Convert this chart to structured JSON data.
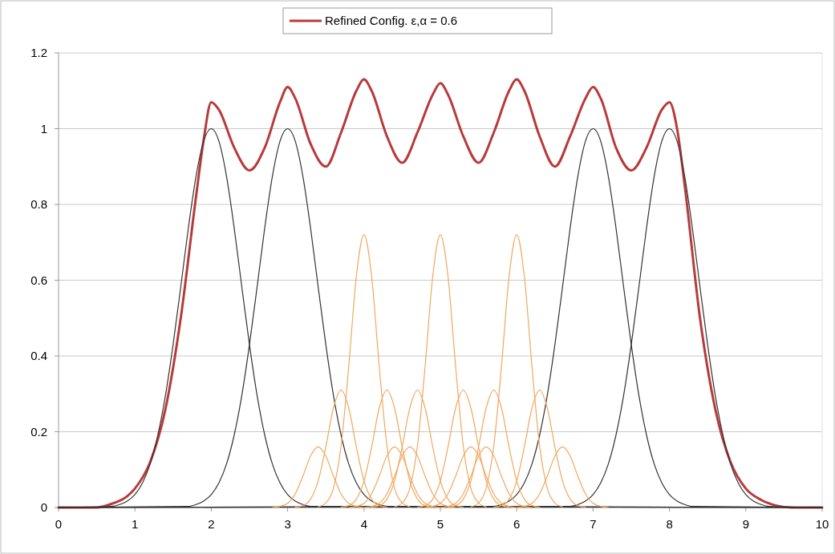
{
  "chart_data": {
    "type": "line",
    "xlim": [
      0,
      10
    ],
    "ylim": [
      0,
      1.2
    ],
    "xticks": [
      0,
      1,
      2,
      3,
      4,
      5,
      6,
      7,
      8,
      9,
      10
    ],
    "yticks": [
      0,
      0.2,
      0.4,
      0.6,
      0.8,
      1,
      1.2
    ],
    "grid": "y",
    "legend": "top",
    "marker": "none",
    "line_style": "solid",
    "series": [
      {
        "name": "Refined Config. ε,α = 0.6",
        "color": "#b83a3a",
        "x": [
          0,
          0.5,
          0.7,
          0.9,
          1,
          1.2,
          1.4,
          1.6,
          1.8,
          1.9,
          2,
          2.1,
          2.3,
          2.5,
          2.7,
          2.9,
          3,
          3.1,
          3.3,
          3.5,
          3.7,
          3.9,
          4,
          4.1,
          4.3,
          4.5,
          4.7,
          4.9,
          5,
          5.1,
          5.3,
          5.5,
          5.7,
          5.9,
          6,
          6.1,
          6.3,
          6.5,
          6.7,
          6.9,
          7,
          7.1,
          7.3,
          7.5,
          7.7,
          7.9,
          8,
          8.1,
          8.2,
          8.4,
          8.6,
          8.8,
          9,
          9.2,
          9.4,
          9.6,
          10
        ],
        "values": [
          0,
          0,
          0.01,
          0.03,
          0.05,
          0.12,
          0.26,
          0.5,
          0.82,
          0.97,
          1.07,
          1.05,
          0.95,
          0.89,
          0.95,
          1.07,
          1.11,
          1.08,
          0.96,
          0.9,
          0.99,
          1.1,
          1.13,
          1.1,
          0.98,
          0.91,
          0.99,
          1.09,
          1.12,
          1.09,
          0.98,
          0.91,
          0.99,
          1.1,
          1.13,
          1.1,
          0.98,
          0.9,
          0.98,
          1.08,
          1.11,
          1.08,
          0.95,
          0.89,
          0.95,
          1.05,
          1.07,
          1,
          0.85,
          0.5,
          0.26,
          0.12,
          0.05,
          0.02,
          0.005,
          0,
          0
        ]
      },
      {
        "color": "#333333",
        "x": [
          0,
          0.7,
          0.8,
          0.9,
          1,
          1.1,
          1.2,
          1.3,
          1.4,
          1.5,
          1.6,
          1.7,
          1.8,
          1.9,
          2,
          2.1,
          2.2,
          2.3,
          2.4,
          2.5,
          2.6,
          2.7,
          2.8,
          2.9,
          3,
          3.1,
          3.2,
          3.3,
          10
        ],
        "values": [
          0,
          0.003,
          0.008,
          0.017,
          0.034,
          0.065,
          0.115,
          0.191,
          0.296,
          0.43,
          0.582,
          0.738,
          0.874,
          0.967,
          1,
          0.967,
          0.874,
          0.738,
          0.582,
          0.43,
          0.296,
          0.191,
          0.115,
          0.065,
          0.034,
          0.017,
          0.008,
          0.003,
          0
        ]
      },
      {
        "color": "#333333",
        "x": [
          0,
          1.7,
          1.8,
          1.9,
          2,
          2.1,
          2.2,
          2.3,
          2.4,
          2.5,
          2.6,
          2.7,
          2.8,
          2.9,
          3,
          3.1,
          3.2,
          3.3,
          3.4,
          3.5,
          3.6,
          3.7,
          3.8,
          3.9,
          4,
          4.1,
          4.2,
          4.3,
          10
        ],
        "values": [
          0,
          0.003,
          0.008,
          0.017,
          0.034,
          0.065,
          0.115,
          0.191,
          0.296,
          0.43,
          0.582,
          0.738,
          0.874,
          0.967,
          1,
          0.967,
          0.874,
          0.738,
          0.582,
          0.43,
          0.296,
          0.191,
          0.115,
          0.065,
          0.034,
          0.017,
          0.008,
          0.003,
          0
        ]
      },
      {
        "color": "#333333",
        "x": [
          0,
          5.7,
          5.8,
          5.9,
          6,
          6.1,
          6.2,
          6.3,
          6.4,
          6.5,
          6.6,
          6.7,
          6.8,
          6.9,
          7,
          7.1,
          7.2,
          7.3,
          7.4,
          7.5,
          7.6,
          7.7,
          7.8,
          7.9,
          8,
          8.1,
          8.2,
          8.3,
          10
        ],
        "values": [
          0,
          0.003,
          0.008,
          0.017,
          0.034,
          0.065,
          0.115,
          0.191,
          0.296,
          0.43,
          0.582,
          0.738,
          0.874,
          0.967,
          1,
          0.967,
          0.874,
          0.738,
          0.582,
          0.43,
          0.296,
          0.191,
          0.115,
          0.065,
          0.034,
          0.017,
          0.008,
          0.003,
          0
        ]
      },
      {
        "color": "#333333",
        "x": [
          0,
          6.7,
          6.8,
          6.9,
          7,
          7.1,
          7.2,
          7.3,
          7.4,
          7.5,
          7.6,
          7.7,
          7.8,
          7.9,
          8,
          8.1,
          8.2,
          8.3,
          8.4,
          8.5,
          8.6,
          8.7,
          8.8,
          8.9,
          9,
          9.1,
          9.2,
          9.3,
          10
        ],
        "values": [
          0,
          0.003,
          0.008,
          0.017,
          0.034,
          0.065,
          0.115,
          0.191,
          0.296,
          0.43,
          0.582,
          0.738,
          0.874,
          0.967,
          1,
          0.967,
          0.874,
          0.738,
          0.582,
          0.43,
          0.296,
          0.191,
          0.115,
          0.065,
          0.034,
          0.017,
          0.008,
          0.003,
          0
        ]
      },
      {
        "color": "#f0a860",
        "x": [
          3.4,
          3.5,
          3.6,
          3.7,
          3.8,
          3.9,
          4,
          4.1,
          4.2,
          4.3,
          4.4,
          4.5,
          4.6
        ],
        "values": [
          0.002,
          0.012,
          0.051,
          0.163,
          0.372,
          0.61,
          0.72,
          0.61,
          0.372,
          0.163,
          0.051,
          0.012,
          0.002
        ]
      },
      {
        "color": "#f0a860",
        "x": [
          4.4,
          4.5,
          4.6,
          4.7,
          4.8,
          4.9,
          5,
          5.1,
          5.2,
          5.3,
          5.4,
          5.5,
          5.6
        ],
        "values": [
          0.002,
          0.012,
          0.051,
          0.163,
          0.372,
          0.61,
          0.72,
          0.61,
          0.372,
          0.163,
          0.051,
          0.012,
          0.002
        ]
      },
      {
        "color": "#f0a860",
        "x": [
          5.4,
          5.5,
          5.6,
          5.7,
          5.8,
          5.9,
          6,
          6.1,
          6.2,
          6.3,
          6.4,
          6.5,
          6.6
        ],
        "values": [
          0.002,
          0.012,
          0.051,
          0.163,
          0.372,
          0.61,
          0.72,
          0.61,
          0.372,
          0.163,
          0.051,
          0.012,
          0.002
        ]
      },
      {
        "color": "#f0a860",
        "x": [
          3.1,
          3.2,
          3.3,
          3.4,
          3.5,
          3.6,
          3.7,
          3.8,
          3.9,
          4,
          4.1,
          4.2,
          4.3
        ],
        "values": [
          0.001,
          0.005,
          0.022,
          0.07,
          0.16,
          0.263,
          0.31,
          0.263,
          0.16,
          0.07,
          0.022,
          0.005,
          0.001
        ]
      },
      {
        "color": "#f0a860",
        "x": [
          3.7,
          3.8,
          3.9,
          4,
          4.1,
          4.2,
          4.3,
          4.4,
          4.5,
          4.6,
          4.7,
          4.8,
          4.9
        ],
        "values": [
          0.001,
          0.005,
          0.022,
          0.07,
          0.16,
          0.263,
          0.31,
          0.263,
          0.16,
          0.07,
          0.022,
          0.005,
          0.001
        ]
      },
      {
        "color": "#f0a860",
        "x": [
          4.1,
          4.2,
          4.3,
          4.4,
          4.5,
          4.6,
          4.7,
          4.8,
          4.9,
          5,
          5.1,
          5.2,
          5.3
        ],
        "values": [
          0.001,
          0.005,
          0.022,
          0.07,
          0.16,
          0.263,
          0.31,
          0.263,
          0.16,
          0.07,
          0.022,
          0.005,
          0.001
        ]
      },
      {
        "color": "#f0a860",
        "x": [
          4.7,
          4.8,
          4.9,
          5,
          5.1,
          5.2,
          5.3,
          5.4,
          5.5,
          5.6,
          5.7,
          5.8,
          5.9
        ],
        "values": [
          0.001,
          0.005,
          0.022,
          0.07,
          0.16,
          0.263,
          0.31,
          0.263,
          0.16,
          0.07,
          0.022,
          0.005,
          0.001
        ]
      },
      {
        "color": "#f0a860",
        "x": [
          5.1,
          5.2,
          5.3,
          5.4,
          5.5,
          5.6,
          5.7,
          5.8,
          5.9,
          6,
          6.1,
          6.2,
          6.3
        ],
        "values": [
          0.001,
          0.005,
          0.022,
          0.07,
          0.16,
          0.263,
          0.31,
          0.263,
          0.16,
          0.07,
          0.022,
          0.005,
          0.001
        ]
      },
      {
        "color": "#f0a860",
        "x": [
          5.7,
          5.8,
          5.9,
          6,
          6.1,
          6.2,
          6.3,
          6.4,
          6.5,
          6.6,
          6.7,
          6.8,
          6.9
        ],
        "values": [
          0.001,
          0.005,
          0.022,
          0.07,
          0.16,
          0.263,
          0.31,
          0.263,
          0.16,
          0.07,
          0.022,
          0.005,
          0.001
        ]
      },
      {
        "color": "#f0a860",
        "x": [
          2.8,
          2.9,
          3,
          3.1,
          3.2,
          3.3,
          3.4,
          3.5,
          3.6,
          3.7,
          3.8,
          3.9,
          4
        ],
        "values": [
          0,
          0.003,
          0.011,
          0.036,
          0.083,
          0.136,
          0.16,
          0.136,
          0.083,
          0.036,
          0.011,
          0.003,
          0
        ]
      },
      {
        "color": "#f0a860",
        "x": [
          3.8,
          3.9,
          4,
          4.1,
          4.2,
          4.3,
          4.4,
          4.5,
          4.6,
          4.7,
          4.8,
          4.9,
          5
        ],
        "values": [
          0,
          0.003,
          0.011,
          0.036,
          0.083,
          0.136,
          0.16,
          0.136,
          0.083,
          0.036,
          0.011,
          0.003,
          0
        ]
      },
      {
        "color": "#f0a860",
        "x": [
          4,
          4.1,
          4.2,
          4.3,
          4.4,
          4.5,
          4.6,
          4.7,
          4.8,
          4.9,
          5,
          5.1,
          5.2
        ],
        "values": [
          0,
          0.003,
          0.011,
          0.036,
          0.083,
          0.136,
          0.16,
          0.136,
          0.083,
          0.036,
          0.011,
          0.003,
          0
        ]
      },
      {
        "color": "#f0a860",
        "x": [
          4.8,
          4.9,
          5,
          5.1,
          5.2,
          5.3,
          5.4,
          5.5,
          5.6,
          5.7,
          5.8,
          5.9,
          6
        ],
        "values": [
          0,
          0.003,
          0.011,
          0.036,
          0.083,
          0.136,
          0.16,
          0.136,
          0.083,
          0.036,
          0.011,
          0.003,
          0
        ]
      },
      {
        "color": "#f0a860",
        "x": [
          5,
          5.1,
          5.2,
          5.3,
          5.4,
          5.5,
          5.6,
          5.7,
          5.8,
          5.9,
          6,
          6.1,
          6.2
        ],
        "values": [
          0,
          0.003,
          0.011,
          0.036,
          0.083,
          0.136,
          0.16,
          0.136,
          0.083,
          0.036,
          0.011,
          0.003,
          0
        ]
      },
      {
        "color": "#f0a860",
        "x": [
          6,
          6.1,
          6.2,
          6.3,
          6.4,
          6.5,
          6.6,
          6.7,
          6.8,
          6.9,
          7,
          7.1,
          7.2
        ],
        "values": [
          0,
          0.003,
          0.011,
          0.036,
          0.083,
          0.136,
          0.16,
          0.136,
          0.083,
          0.036,
          0.011,
          0.003,
          0
        ]
      }
    ]
  }
}
